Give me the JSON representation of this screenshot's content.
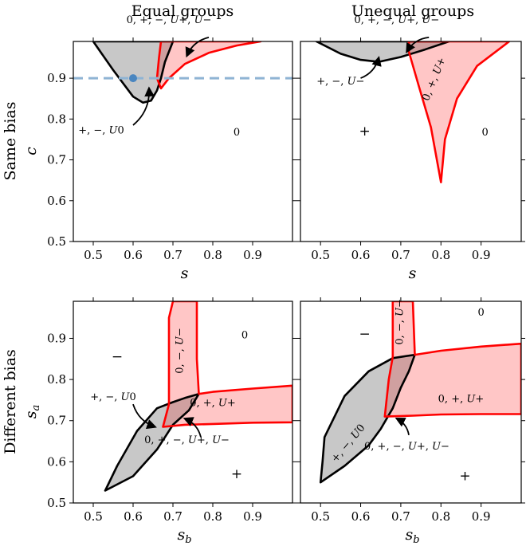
{
  "figure": {
    "col_titles": [
      "Equal groups",
      "Unequal groups"
    ],
    "row_titles": [
      "Same bias",
      "Different bias"
    ],
    "tick_labels": [
      "0.5",
      "0.6",
      "0.7",
      "0.8",
      "0.9"
    ],
    "colors": {
      "gray_fill": "#c8c8c8",
      "red_fill": "#ffc6c6",
      "overlap_fill": "#d0a0a0",
      "black_outline": "#000000",
      "red_outline": "#ff0000",
      "ref_line": "#8fb4d4",
      "point": "#4a86c0"
    }
  },
  "chart_data": [
    {
      "type": "region-plot",
      "title": "Equal groups",
      "row_label": "Same bias",
      "xlabel": "s",
      "ylabel": "c",
      "xlim": [
        0.45,
        1.0
      ],
      "ylim": [
        0.5,
        0.99
      ],
      "xticks": [
        0.5,
        0.6,
        0.7,
        0.8,
        0.9
      ],
      "yticks": [
        0.5,
        0.6,
        0.7,
        0.8,
        0.9
      ],
      "reference_line": {
        "y": 0.9,
        "style": "dashed"
      },
      "point": {
        "x": 0.6,
        "y": 0.9
      },
      "regions": [
        {
          "kind": "gray",
          "points": [
            [
              0.5,
              0.99
            ],
            [
              0.55,
              0.92
            ],
            [
              0.6,
              0.855
            ],
            [
              0.625,
              0.84
            ],
            [
              0.645,
              0.845
            ],
            [
              0.66,
              0.87
            ],
            [
              0.67,
              0.9
            ],
            [
              0.68,
              0.94
            ],
            [
              0.7,
              0.99
            ]
          ]
        },
        {
          "kind": "red",
          "points": [
            [
              0.67,
              0.99
            ],
            [
              0.665,
              0.95
            ],
            [
              0.66,
              0.9
            ],
            [
              0.67,
              0.875
            ],
            [
              0.69,
              0.9
            ],
            [
              0.73,
              0.935
            ],
            [
              0.79,
              0.962
            ],
            [
              0.86,
              0.98
            ],
            [
              0.92,
              0.99
            ]
          ]
        }
      ],
      "labels": [
        {
          "text": "+, −, U0",
          "x": 0.52,
          "y": 0.765
        },
        {
          "text": "0",
          "x": 0.86,
          "y": 0.76
        },
        {
          "text": "0, +, −, U+, U−",
          "x": 0.69,
          "y": 1.035
        }
      ],
      "arrows": [
        {
          "from": [
            0.6,
            0.785
          ],
          "to": [
            0.64,
            0.875
          ]
        },
        {
          "from": [
            0.79,
            1.0
          ],
          "to": [
            0.735,
            0.955
          ]
        }
      ]
    },
    {
      "type": "region-plot",
      "title": "Unequal groups",
      "row_label": "Same bias",
      "xlabel": "s",
      "ylabel": "",
      "xlim": [
        0.45,
        1.0
      ],
      "ylim": [
        0.5,
        0.99
      ],
      "xticks": [
        0.5,
        0.6,
        0.7,
        0.8,
        0.9
      ],
      "yticks": [
        0.5,
        0.6,
        0.7,
        0.8,
        0.9
      ],
      "regions": [
        {
          "kind": "gray",
          "points": [
            [
              0.49,
              0.99
            ],
            [
              0.55,
              0.96
            ],
            [
              0.6,
              0.945
            ],
            [
              0.645,
              0.94
            ],
            [
              0.7,
              0.952
            ],
            [
              0.76,
              0.97
            ],
            [
              0.82,
              0.99
            ]
          ]
        },
        {
          "kind": "red",
          "points": [
            [
              0.72,
              0.99
            ],
            [
              0.72,
              0.965
            ],
            [
              0.745,
              0.88
            ],
            [
              0.775,
              0.78
            ],
            [
              0.8,
              0.645
            ],
            [
              0.81,
              0.75
            ],
            [
              0.84,
              0.85
            ],
            [
              0.89,
              0.93
            ],
            [
              0.97,
              0.99
            ]
          ]
        }
      ],
      "labels": [
        {
          "text": "+",
          "x": 0.61,
          "y": 0.76
        },
        {
          "text": "0",
          "x": 0.91,
          "y": 0.76
        },
        {
          "text": "+, −, U−",
          "x": 0.55,
          "y": 0.885
        },
        {
          "text": "0, +, −, U+, U−",
          "x": 0.69,
          "y": 1.035
        }
      ],
      "rotated_labels": [
        {
          "text": "0, +, U+",
          "x": 0.79,
          "y": 0.895,
          "angle": -68
        }
      ],
      "arrows": [
        {
          "from": [
            0.6,
            0.9
          ],
          "to": [
            0.645,
            0.95
          ]
        },
        {
          "from": [
            0.77,
            1.0
          ],
          "to": [
            0.715,
            0.965
          ]
        }
      ]
    },
    {
      "type": "region-plot",
      "title": "",
      "row_label": "Different bias",
      "xlabel": "s_b",
      "ylabel": "s_a",
      "xlim": [
        0.45,
        1.0
      ],
      "ylim": [
        0.5,
        0.99
      ],
      "xticks": [
        0.5,
        0.6,
        0.7,
        0.8,
        0.9
      ],
      "yticks": [
        0.5,
        0.6,
        0.7,
        0.8,
        0.9
      ],
      "regions": [
        {
          "kind": "gray",
          "points": [
            [
              0.53,
              0.53
            ],
            [
              0.6,
              0.565
            ],
            [
              0.66,
              0.63
            ],
            [
              0.7,
              0.69
            ],
            [
              0.74,
              0.725
            ],
            [
              0.765,
              0.765
            ],
            [
              0.73,
              0.755
            ],
            [
              0.7,
              0.745
            ],
            [
              0.66,
              0.73
            ],
            [
              0.61,
              0.675
            ],
            [
              0.56,
              0.59
            ]
          ]
        },
        {
          "kind": "red",
          "points": [
            [
              0.7,
              0.99
            ],
            [
              0.69,
              0.95
            ],
            [
              0.69,
              0.74
            ],
            [
              0.675,
              0.685
            ],
            [
              0.73,
              0.69
            ],
            [
              0.8,
              0.692
            ],
            [
              0.9,
              0.695
            ],
            [
              1.0,
              0.696
            ],
            [
              1.0,
              0.785
            ],
            [
              0.9,
              0.778
            ],
            [
              0.8,
              0.77
            ],
            [
              0.765,
              0.765
            ],
            [
              0.76,
              0.85
            ],
            [
              0.76,
              0.99
            ]
          ]
        }
      ],
      "labels": [
        {
          "text": "−",
          "x": 0.56,
          "y": 0.845
        },
        {
          "text": "0",
          "x": 0.88,
          "y": 0.9
        },
        {
          "text": "+",
          "x": 0.86,
          "y": 0.56
        },
        {
          "text": "+, −, U0",
          "x": 0.55,
          "y": 0.75
        },
        {
          "text": "0, +, U+",
          "x": 0.8,
          "y": 0.735
        },
        {
          "text": "0, +, −, U+, U−",
          "x": 0.735,
          "y": 0.645
        }
      ],
      "rotated_labels": [
        {
          "text": "0, −, U−",
          "x": 0.725,
          "y": 0.87,
          "angle": -90
        }
      ],
      "arrows": [
        {
          "from": [
            0.6,
            0.74
          ],
          "to": [
            0.655,
            0.685
          ]
        },
        {
          "from": [
            0.77,
            0.66
          ],
          "to": [
            0.73,
            0.705
          ]
        }
      ]
    },
    {
      "type": "region-plot",
      "title": "",
      "row_label": "Different bias",
      "xlabel": "s_b",
      "ylabel": "",
      "xlim": [
        0.45,
        1.0
      ],
      "ylim": [
        0.5,
        0.99
      ],
      "xticks": [
        0.5,
        0.6,
        0.7,
        0.8,
        0.9
      ],
      "yticks": [
        0.5,
        0.6,
        0.7,
        0.8,
        0.9
      ],
      "regions": [
        {
          "kind": "gray",
          "points": [
            [
              0.5,
              0.55
            ],
            [
              0.56,
              0.59
            ],
            [
              0.62,
              0.64
            ],
            [
              0.65,
              0.68
            ],
            [
              0.68,
              0.73
            ],
            [
              0.7,
              0.78
            ],
            [
              0.72,
              0.82
            ],
            [
              0.735,
              0.86
            ],
            [
              0.68,
              0.852
            ],
            [
              0.62,
              0.82
            ],
            [
              0.56,
              0.76
            ],
            [
              0.51,
              0.66
            ],
            [
              0.505,
              0.6
            ]
          ]
        },
        {
          "kind": "red",
          "points": [
            [
              0.68,
              0.99
            ],
            [
              0.68,
              0.855
            ],
            [
              0.67,
              0.8
            ],
            [
              0.66,
              0.71
            ],
            [
              0.73,
              0.712
            ],
            [
              0.8,
              0.715
            ],
            [
              0.9,
              0.716
            ],
            [
              1.0,
              0.716
            ],
            [
              1.0,
              0.887
            ],
            [
              0.9,
              0.88
            ],
            [
              0.8,
              0.87
            ],
            [
              0.735,
              0.86
            ],
            [
              0.73,
              0.99
            ]
          ]
        }
      ],
      "labels": [
        {
          "text": "−",
          "x": 0.61,
          "y": 0.9
        },
        {
          "text": "0",
          "x": 0.9,
          "y": 0.955
        },
        {
          "text": "+",
          "x": 0.86,
          "y": 0.555
        },
        {
          "text": "0, +, U+",
          "x": 0.85,
          "y": 0.745
        },
        {
          "text": "0, +, −, U+, U−",
          "x": 0.715,
          "y": 0.63
        }
      ],
      "rotated_labels": [
        {
          "text": "+, −, U0",
          "x": 0.575,
          "y": 0.64,
          "angle": -50
        },
        {
          "text": "0, −, U−",
          "x": 0.705,
          "y": 0.94,
          "angle": -90
        }
      ],
      "arrows": [
        {
          "from": [
            0.72,
            0.665
          ],
          "to": [
            0.69,
            0.705
          ]
        }
      ]
    }
  ]
}
